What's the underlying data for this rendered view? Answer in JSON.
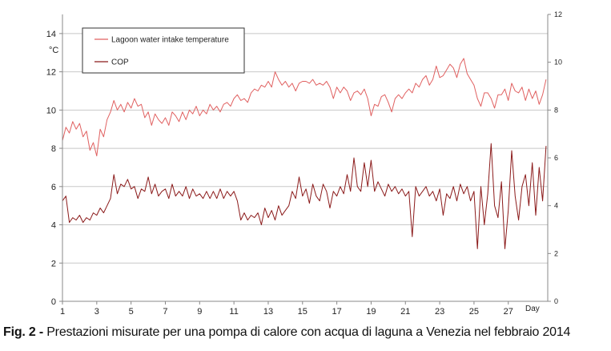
{
  "chart_data": {
    "type": "line",
    "xlabel": "Day",
    "ylabel_left": "°C",
    "ylim_left": [
      0,
      15
    ],
    "yticks_left": [
      0,
      2,
      4,
      6,
      8,
      10,
      12,
      14
    ],
    "ylim_right": [
      0,
      12
    ],
    "yticks_right": [
      0,
      2,
      4,
      6,
      8,
      10,
      12
    ],
    "xlim": [
      1,
      29.3
    ],
    "xticks": [
      1,
      3,
      5,
      7,
      9,
      11,
      13,
      15,
      17,
      19,
      21,
      23,
      25,
      27
    ],
    "grid": "horizontal",
    "legend_position": "top-left",
    "series": [
      {
        "name": "Lagoon water intake temperature",
        "axis": "left",
        "color": "#e06060",
        "x": [
          1.0,
          1.2,
          1.4,
          1.6,
          1.8,
          2.0,
          2.2,
          2.4,
          2.6,
          2.8,
          3.0,
          3.2,
          3.4,
          3.6,
          3.8,
          4.0,
          4.2,
          4.4,
          4.6,
          4.8,
          5.0,
          5.2,
          5.4,
          5.6,
          5.8,
          6.0,
          6.2,
          6.4,
          6.6,
          6.8,
          7.0,
          7.2,
          7.4,
          7.6,
          7.8,
          8.0,
          8.2,
          8.4,
          8.6,
          8.8,
          9.0,
          9.2,
          9.4,
          9.6,
          9.8,
          10.0,
          10.2,
          10.4,
          10.6,
          10.8,
          11.0,
          11.2,
          11.4,
          11.6,
          11.8,
          12.0,
          12.2,
          12.4,
          12.6,
          12.8,
          13.0,
          13.2,
          13.4,
          13.6,
          13.8,
          14.0,
          14.2,
          14.4,
          14.6,
          14.8,
          15.0,
          15.2,
          15.4,
          15.6,
          15.8,
          16.0,
          16.2,
          16.4,
          16.6,
          16.8,
          17.0,
          17.2,
          17.4,
          17.6,
          17.8,
          18.0,
          18.2,
          18.4,
          18.6,
          18.8,
          19.0,
          19.2,
          19.4,
          19.6,
          19.8,
          20.0,
          20.2,
          20.4,
          20.6,
          20.8,
          21.0,
          21.2,
          21.4,
          21.6,
          21.8,
          22.0,
          22.2,
          22.4,
          22.6,
          22.8,
          23.0,
          23.2,
          23.4,
          23.6,
          23.8,
          24.0,
          24.2,
          24.4,
          24.6,
          24.8,
          25.0,
          25.2,
          25.4,
          25.6,
          25.8,
          26.0,
          26.2,
          26.4,
          26.6,
          26.8,
          27.0,
          27.2,
          27.4,
          27.6,
          27.8,
          28.0,
          28.2,
          28.4,
          28.6,
          28.8,
          29.0,
          29.2
        ],
        "values": [
          8.4,
          9.1,
          8.8,
          9.4,
          9.0,
          9.3,
          8.6,
          8.9,
          7.9,
          8.3,
          7.6,
          9.0,
          8.6,
          9.5,
          9.9,
          10.5,
          10.0,
          10.3,
          9.9,
          10.4,
          10.1,
          10.6,
          10.2,
          10.3,
          9.6,
          9.9,
          9.2,
          9.8,
          9.5,
          9.3,
          9.6,
          9.2,
          9.9,
          9.7,
          9.4,
          9.9,
          9.5,
          10.0,
          9.8,
          10.2,
          9.7,
          10.0,
          9.8,
          10.3,
          10.0,
          10.2,
          9.9,
          10.3,
          10.4,
          10.2,
          10.6,
          10.8,
          10.5,
          10.6,
          10.4,
          10.9,
          11.1,
          11.0,
          11.3,
          11.2,
          11.5,
          11.2,
          12.0,
          11.6,
          11.3,
          11.5,
          11.2,
          11.4,
          11.0,
          11.4,
          11.5,
          11.5,
          11.4,
          11.6,
          11.3,
          11.4,
          11.3,
          11.5,
          11.2,
          10.6,
          11.2,
          10.9,
          11.2,
          11.0,
          10.5,
          10.9,
          11.0,
          10.8,
          11.1,
          10.6,
          9.7,
          10.3,
          10.2,
          10.7,
          10.8,
          10.4,
          9.9,
          10.6,
          10.8,
          10.6,
          10.9,
          11.1,
          10.9,
          11.4,
          11.2,
          11.6,
          11.8,
          11.3,
          11.6,
          12.3,
          11.7,
          11.8,
          12.1,
          12.4,
          12.2,
          11.7,
          12.4,
          12.7,
          11.9,
          11.6,
          11.3,
          10.6,
          10.2,
          10.9,
          10.9,
          10.6,
          10.1,
          10.8,
          10.8,
          11.1,
          10.5,
          11.4,
          11.0,
          10.9,
          11.2,
          10.5,
          11.1,
          10.6,
          11.0,
          10.3,
          10.8,
          11.6
        ]
      },
      {
        "name": "COP",
        "axis": "right",
        "color": "#8b1a1a",
        "x": [
          1.0,
          1.2,
          1.4,
          1.6,
          1.8,
          2.0,
          2.2,
          2.4,
          2.6,
          2.8,
          3.0,
          3.2,
          3.4,
          3.6,
          3.8,
          4.0,
          4.2,
          4.4,
          4.6,
          4.8,
          5.0,
          5.2,
          5.4,
          5.6,
          5.8,
          6.0,
          6.2,
          6.4,
          6.6,
          6.8,
          7.0,
          7.2,
          7.4,
          7.6,
          7.8,
          8.0,
          8.2,
          8.4,
          8.6,
          8.8,
          9.0,
          9.2,
          9.4,
          9.6,
          9.8,
          10.0,
          10.2,
          10.4,
          10.6,
          10.8,
          11.0,
          11.2,
          11.4,
          11.6,
          11.8,
          12.0,
          12.2,
          12.4,
          12.6,
          12.8,
          13.0,
          13.2,
          13.4,
          13.6,
          13.8,
          14.0,
          14.2,
          14.4,
          14.6,
          14.8,
          15.0,
          15.2,
          15.4,
          15.6,
          15.8,
          16.0,
          16.2,
          16.4,
          16.6,
          16.8,
          17.0,
          17.2,
          17.4,
          17.6,
          17.8,
          18.0,
          18.2,
          18.4,
          18.6,
          18.8,
          19.0,
          19.2,
          19.4,
          19.6,
          19.8,
          20.0,
          20.2,
          20.4,
          20.6,
          20.8,
          21.0,
          21.2,
          21.4,
          21.6,
          21.8,
          22.0,
          22.2,
          22.4,
          22.6,
          22.8,
          23.0,
          23.2,
          23.4,
          23.6,
          23.8,
          24.0,
          24.2,
          24.4,
          24.6,
          24.8,
          25.0,
          25.2,
          25.4,
          25.6,
          25.8,
          26.0,
          26.2,
          26.4,
          26.6,
          26.8,
          27.0,
          27.2,
          27.4,
          27.6,
          27.8,
          28.0,
          28.2,
          28.4,
          28.6,
          28.8,
          29.0,
          29.2
        ],
        "values": [
          4.2,
          4.4,
          3.3,
          3.5,
          3.4,
          3.6,
          3.3,
          3.5,
          3.4,
          3.7,
          3.6,
          3.9,
          3.7,
          4.0,
          4.3,
          5.3,
          4.5,
          4.9,
          4.8,
          5.1,
          4.7,
          4.8,
          4.3,
          4.7,
          4.6,
          5.2,
          4.5,
          4.9,
          4.4,
          4.6,
          4.7,
          4.3,
          4.9,
          4.4,
          4.6,
          4.4,
          4.8,
          4.3,
          4.7,
          4.4,
          4.5,
          4.3,
          4.6,
          4.3,
          4.6,
          4.3,
          4.7,
          4.3,
          4.6,
          4.4,
          4.6,
          4.2,
          3.4,
          3.7,
          3.4,
          3.6,
          3.5,
          3.7,
          3.2,
          3.9,
          3.5,
          3.8,
          3.4,
          4.0,
          3.6,
          3.8,
          4.0,
          4.6,
          4.3,
          5.2,
          4.4,
          4.7,
          4.1,
          4.9,
          4.4,
          4.2,
          4.9,
          4.6,
          3.9,
          4.6,
          4.4,
          4.8,
          4.5,
          5.3,
          4.6,
          6.0,
          4.8,
          4.6,
          5.8,
          4.8,
          5.9,
          4.6,
          5.0,
          4.7,
          4.4,
          4.9,
          4.6,
          4.8,
          4.5,
          4.7,
          4.4,
          4.6,
          2.7,
          4.8,
          4.4,
          4.6,
          4.8,
          4.4,
          4.6,
          4.2,
          4.7,
          3.6,
          4.5,
          4.3,
          4.8,
          4.2,
          4.9,
          4.5,
          4.8,
          4.2,
          4.6,
          2.2,
          4.8,
          3.2,
          4.5,
          6.6,
          4.0,
          3.5,
          5.0,
          2.2,
          3.8,
          6.3,
          4.4,
          3.4,
          4.8,
          5.3,
          4.0,
          5.8,
          3.6,
          5.6,
          4.2,
          6.5
        ]
      }
    ]
  },
  "caption": {
    "label": "Fig. 2 -",
    "text": " Prestazioni misurate per una pompa di calore con acqua di laguna a Venezia nel febbraio 2014"
  }
}
